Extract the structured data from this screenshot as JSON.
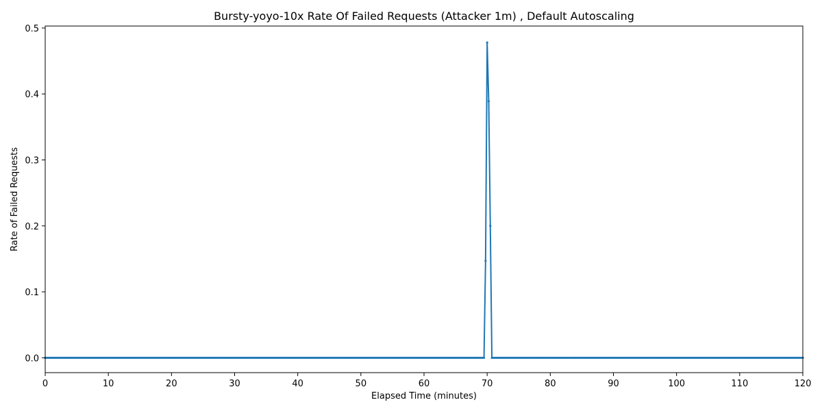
{
  "chart_data": {
    "type": "line",
    "title": "Bursty-yoyo-10x Rate Of Failed Requests (Attacker 1m) , Default Autoscaling",
    "xlabel": "Elapsed Time (minutes)",
    "ylabel": "Rate of Failed Requests",
    "xlim": [
      0,
      120
    ],
    "ylim": [
      -0.0225,
      0.503
    ],
    "xticks": [
      0,
      10,
      20,
      30,
      40,
      50,
      60,
      70,
      80,
      90,
      100,
      110,
      120
    ],
    "yticks": [
      0.0,
      0.1,
      0.2,
      0.3,
      0.4,
      0.5
    ],
    "ytick_labels": [
      "0.0",
      "0.1",
      "0.2",
      "0.3",
      "0.4",
      "0.5"
    ],
    "grid": false,
    "line_color": "#1f77b4",
    "series": [
      {
        "baseline_value": 0.0,
        "sample_interval_minutes": 0.25,
        "points": [
          [
            69.5,
            0.0
          ],
          [
            69.75,
            0.147
          ],
          [
            70.0,
            0.478
          ],
          [
            70.25,
            0.389
          ],
          [
            70.5,
            0.2
          ],
          [
            70.75,
            0.0
          ]
        ]
      }
    ]
  }
}
